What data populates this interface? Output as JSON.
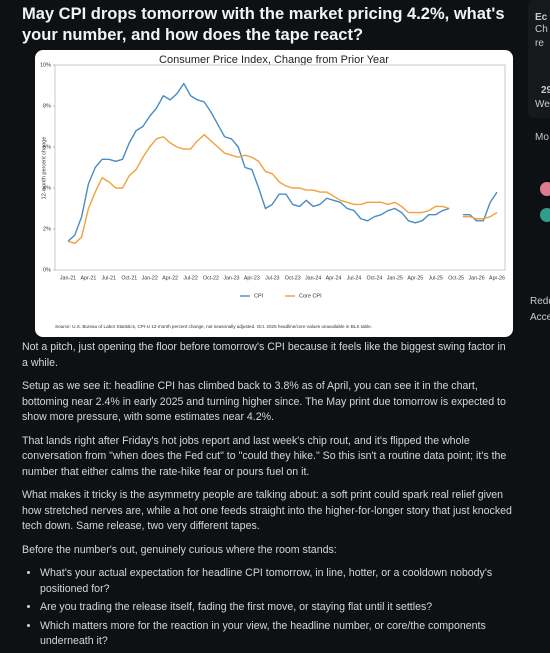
{
  "post": {
    "title": "May CPI drops tomorrow with the market pricing 4.2%, what's your number, and how does the tape react?",
    "paragraphs": [
      "Not a pitch, just opening the floor before tomorrow's CPI because it feels like the biggest swing factor in a while.",
      "Setup as we see it: headline CPI has climbed back to 3.8% as of April, you can see it in the chart, bottoming near 2.4% in early 2025 and turning higher since. The May print due tomorrow is expected to show more pressure, with some estimates near 4.2%.",
      "That lands right after Friday's hot jobs report and last week's chip rout, and it's flipped the whole conversation from \"when does the Fed cut\" to \"could they hike.\" So this isn't a routine data point; it's the number that either calms the rate-hike fear or pours fuel on it.",
      "What makes it tricky is the asymmetry people are talking about: a soft print could spark real relief given how stretched nerves are, while a hot one feeds straight into the higher-for-longer story that just knocked tech down. Same release, two very different tapes.",
      "Before the number's out, genuinely curious where the room stands:"
    ],
    "bullets": [
      "What's your actual expectation for headline CPI tomorrow, in line, hotter, or a cooldown nobody's positioned for?",
      "Are you trading the release itself, fading the first move, or staying flat until it settles?",
      "Which matters more for the reaction in your view, the headline number, or core/the components underneath it?"
    ]
  },
  "sidebar": {
    "fragments": [
      "Ec",
      "Ch",
      "re",
      "29",
      "We",
      "Mo",
      "Redd",
      "Acce"
    ]
  },
  "chart_data": {
    "type": "line",
    "title": "Consumer Price Index, Change from Prior Year",
    "y_label": "12-month percent change",
    "note": "Source: U.S. Bureau of Labor Statistics, CPI-U 12-month percent change, not seasonally adjusted. Oct. 2025 headline/core values unavailable in BLS table.",
    "categories": [
      "Jan-21",
      null,
      null,
      "Apr-21",
      null,
      null,
      "Jul-21",
      null,
      null,
      "Oct-21",
      null,
      null,
      "Jan-22",
      null,
      null,
      "Apr-22",
      null,
      null,
      "Jul-22",
      null,
      null,
      "Oct-22",
      null,
      null,
      "Jan-23",
      null,
      null,
      "Apr-23",
      null,
      null,
      "Jul-23",
      null,
      null,
      "Oct-23",
      null,
      null,
      "Jan-24",
      null,
      null,
      "Apr-24",
      null,
      null,
      "Jul-24",
      null,
      null,
      "Oct-24",
      null,
      null,
      "Jan-25",
      null,
      null,
      "Apr-25",
      null,
      null,
      "Jul-25",
      null,
      null,
      "Oct-25",
      null,
      null,
      "Jan-26",
      null,
      null,
      "Apr-26"
    ],
    "series": [
      {
        "name": "CPI",
        "color": "#4a8cc4",
        "values": [
          1.4,
          1.7,
          2.6,
          4.2,
          5.0,
          5.4,
          5.4,
          5.3,
          5.4,
          6.2,
          6.8,
          7.0,
          7.5,
          7.9,
          8.5,
          8.3,
          8.6,
          9.1,
          8.5,
          8.3,
          8.2,
          7.7,
          7.1,
          6.5,
          6.4,
          6.0,
          5.0,
          4.9,
          4.0,
          3.0,
          3.2,
          3.7,
          3.7,
          3.2,
          3.1,
          3.4,
          3.1,
          3.2,
          3.5,
          3.4,
          3.3,
          3.0,
          2.9,
          2.5,
          2.4,
          2.6,
          2.7,
          2.9,
          3.0,
          2.8,
          2.4,
          2.3,
          2.4,
          2.7,
          2.7,
          2.9,
          3.0,
          null,
          2.7,
          2.7,
          2.4,
          2.4,
          3.3,
          3.8
        ]
      },
      {
        "name": "Core CPI",
        "color": "#f2a03d",
        "values": [
          1.4,
          1.3,
          1.6,
          3.0,
          3.8,
          4.5,
          4.3,
          4.0,
          4.0,
          4.6,
          4.9,
          5.5,
          6.0,
          6.4,
          6.5,
          6.2,
          6.0,
          5.9,
          5.9,
          6.3,
          6.6,
          6.3,
          6.0,
          5.7,
          5.6,
          5.5,
          5.6,
          5.5,
          5.3,
          4.8,
          4.7,
          4.3,
          4.1,
          4.0,
          4.0,
          3.9,
          3.9,
          3.8,
          3.8,
          3.6,
          3.4,
          3.3,
          3.2,
          3.2,
          3.3,
          3.3,
          3.3,
          3.2,
          3.3,
          3.1,
          2.8,
          2.8,
          2.8,
          2.9,
          3.1,
          3.1,
          3.0,
          null,
          2.6,
          2.6,
          2.5,
          2.5,
          2.6,
          2.8
        ]
      }
    ],
    "ylim": [
      0,
      10
    ],
    "yticks": [
      {
        "value": 0,
        "label": "0%"
      },
      {
        "value": 2,
        "label": "2%"
      },
      {
        "value": 4,
        "label": "4%"
      },
      {
        "value": 6,
        "label": "6%"
      },
      {
        "value": 8,
        "label": "8%"
      },
      {
        "value": 10,
        "label": "10%"
      }
    ],
    "grid": false,
    "legend": "bottom"
  }
}
